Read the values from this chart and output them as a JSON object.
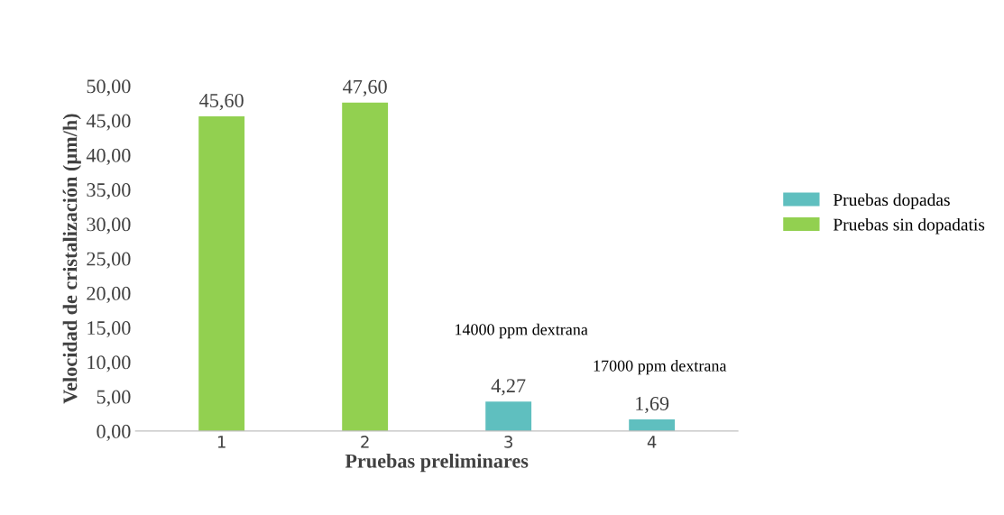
{
  "chart_data": {
    "type": "bar",
    "xlabel": "Pruebas preliminares",
    "ylabel": "Velocidad de cristalización (µm/h)",
    "categories": [
      "1",
      "2",
      "3",
      "4"
    ],
    "series": [
      {
        "name": "Pruebas dopadas",
        "color": "#5fbfbf",
        "values": [
          null,
          null,
          4.27,
          1.69
        ],
        "value_labels": [
          null,
          null,
          "4,27",
          "1,69"
        ]
      },
      {
        "name": "Pruebas sin dopadatis",
        "color": "#92d050",
        "values": [
          45.6,
          47.6,
          null,
          null
        ],
        "value_labels": [
          "45,60",
          "47,60",
          null,
          null
        ]
      }
    ],
    "ylim": [
      0,
      50
    ],
    "yticks": [
      {
        "value": 0,
        "label": "0,00"
      },
      {
        "value": 5,
        "label": "5,00"
      },
      {
        "value": 10,
        "label": "10,00"
      },
      {
        "value": 15,
        "label": "15,00"
      },
      {
        "value": 20,
        "label": "20,00"
      },
      {
        "value": 25,
        "label": "25,00"
      },
      {
        "value": 30,
        "label": "30,00"
      },
      {
        "value": 35,
        "label": "35,00"
      },
      {
        "value": 40,
        "label": "40,00"
      },
      {
        "value": 45,
        "label": "45,00"
      },
      {
        "value": 50,
        "label": "50,00"
      }
    ],
    "annotations": [
      "14000 ppm dextrana",
      "17000 ppm dextrana"
    ],
    "grid": false,
    "legend": "right"
  }
}
